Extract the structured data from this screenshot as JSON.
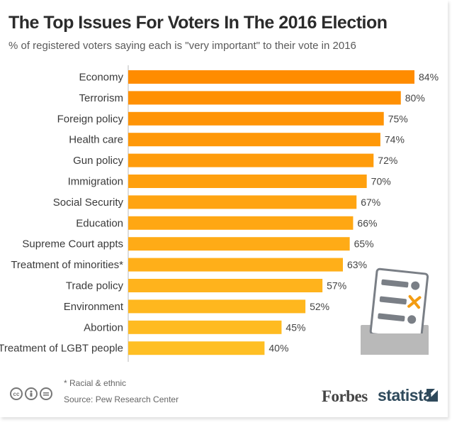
{
  "header": {
    "title": "The Top Issues For Voters In The 2016 Election",
    "subtitle": "% of registered voters saying each is \"very important\" to their vote in 2016"
  },
  "footer": {
    "footnote": "* Racial & ethnic",
    "source": "Source: Pew Research Center",
    "brand_forbes": "Forbes",
    "brand_statista": "statista"
  },
  "colors": {
    "bar_top": "#ff8c00",
    "bar_bottom": "#ffbf24",
    "axis": "#bbbbbb"
  },
  "icons": [
    "creative-commons-icon",
    "attribution-icon",
    "no-derivatives-icon",
    "ballot-icon",
    "statista-logo-icon"
  ],
  "chart_data": {
    "type": "bar",
    "orientation": "horizontal",
    "title": "The Top Issues For Voters In The 2016 Election",
    "subtitle": "% of registered voters saying each is \"very important\" to their vote in 2016",
    "categories": [
      "Economy",
      "Terrorism",
      "Foreign policy",
      "Health care",
      "Gun policy",
      "Immigration",
      "Social Security",
      "Education",
      "Supreme Court appts",
      "Treatment of minorities*",
      "Trade policy",
      "Environment",
      "Abortion",
      "Treatment of LGBT people"
    ],
    "values": [
      84,
      80,
      75,
      74,
      72,
      70,
      67,
      66,
      65,
      63,
      57,
      52,
      45,
      40
    ],
    "value_labels": [
      "84%",
      "80%",
      "75%",
      "74%",
      "72%",
      "70%",
      "67%",
      "66%",
      "65%",
      "63%",
      "57%",
      "52%",
      "45%",
      "40%"
    ],
    "xlim": [
      0,
      84
    ],
    "grid": false,
    "legend": "none"
  }
}
